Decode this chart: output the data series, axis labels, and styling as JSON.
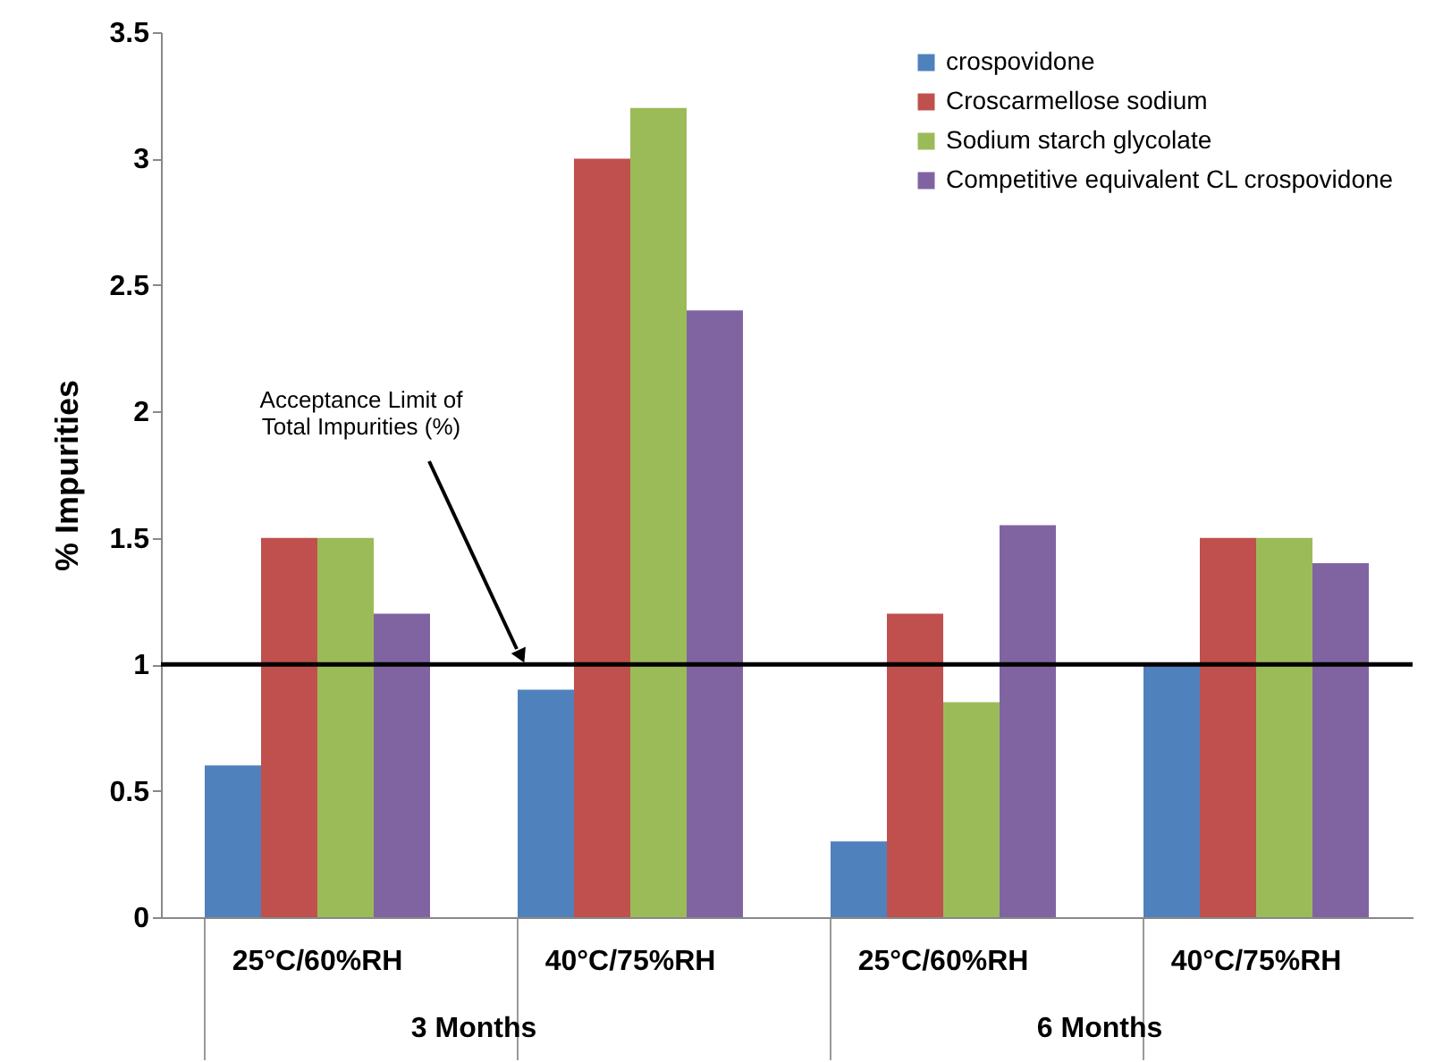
{
  "chart_data": {
    "type": "bar",
    "ylabel": "% Impurities",
    "categories": [
      "25°C/60%RH",
      "40°C/75%RH",
      "25°C/60%RH",
      "40°C/75%RH"
    ],
    "series": [
      {
        "name": "crospovidone",
        "color": "#4f81bd",
        "values": [
          0.6,
          0.9,
          0.3,
          1.0
        ]
      },
      {
        "name": "Croscarmellose sodium",
        "color": "#c0504d",
        "values": [
          1.5,
          3.0,
          1.2,
          1.5
        ]
      },
      {
        "name": "Sodium starch glycolate",
        "color": "#9bbb59",
        "values": [
          1.5,
          3.2,
          0.85,
          1.5
        ]
      },
      {
        "name": "Competitive equivalent CL crospovidone",
        "color": "#8064a2",
        "values": [
          1.2,
          2.4,
          1.55,
          1.4
        ]
      }
    ],
    "ylim": [
      0,
      3.5
    ],
    "yticks": [
      0,
      0.5,
      1,
      1.5,
      2,
      2.5,
      3,
      3.5
    ],
    "grid": false,
    "legend": "top right",
    "ref_lines": [
      {
        "axis": "y",
        "value": 1,
        "label": "Acceptance Limit of\nTotal Impurities (%)",
        "color": "#000000"
      }
    ],
    "annotations": [
      "3 Months",
      "6 Months"
    ]
  }
}
